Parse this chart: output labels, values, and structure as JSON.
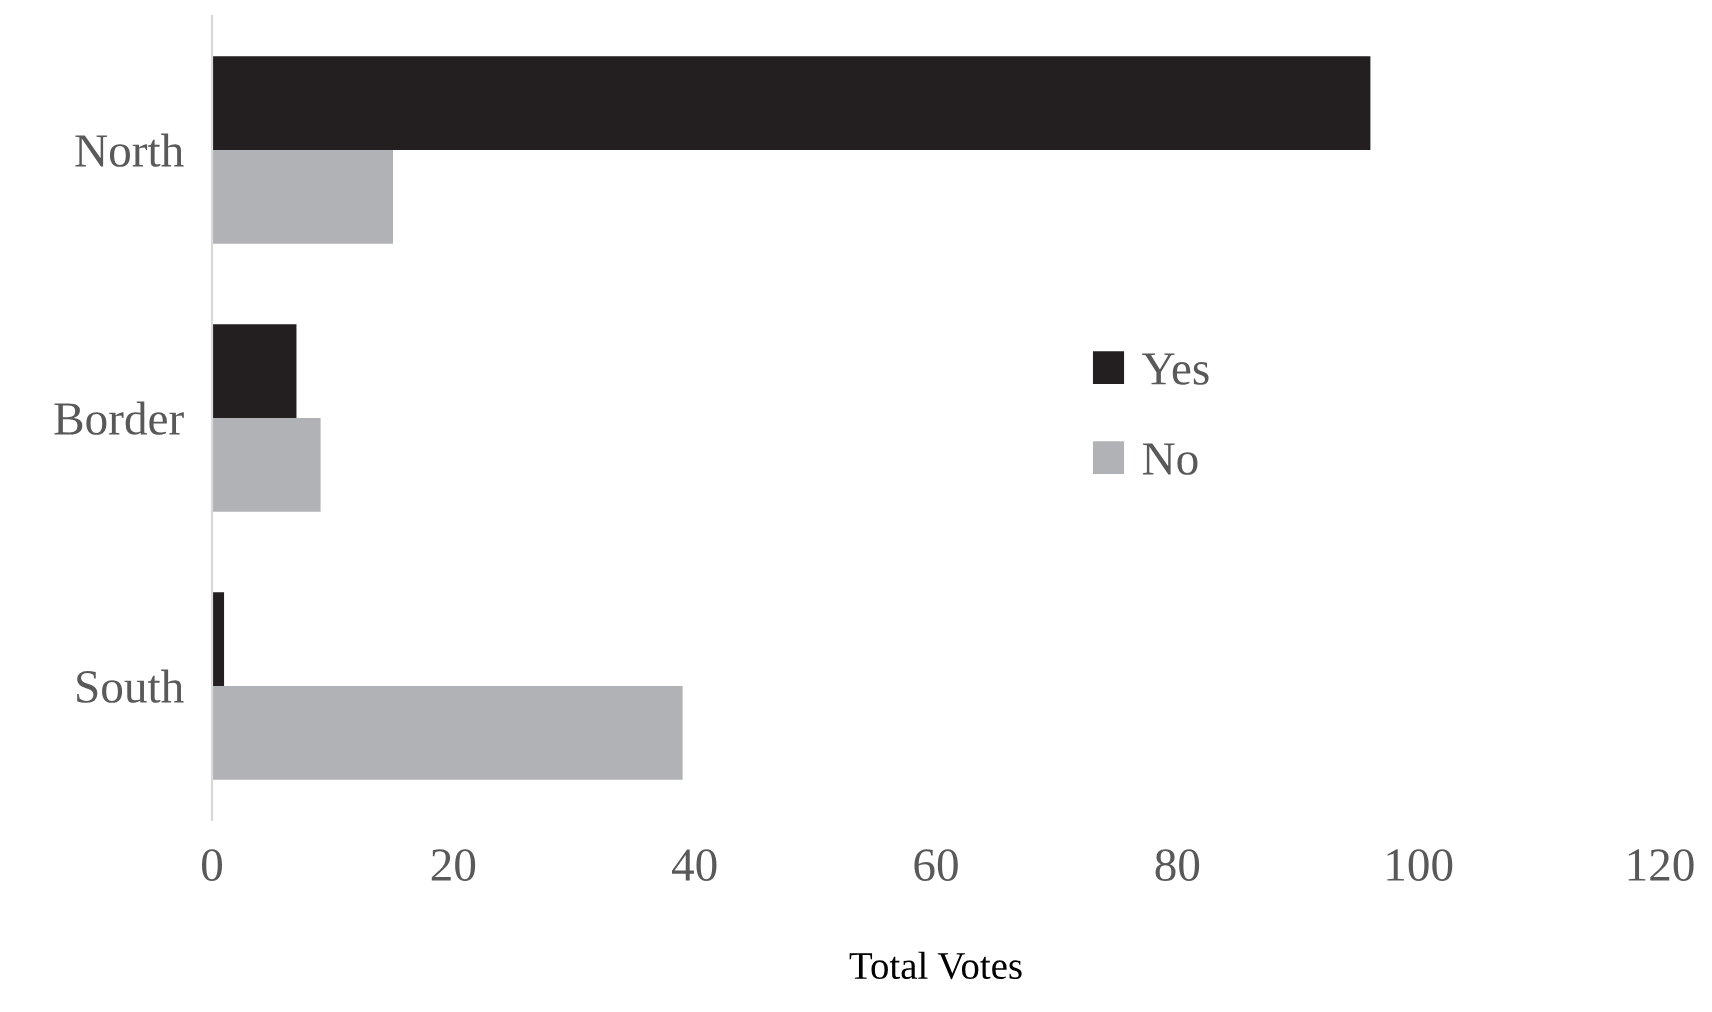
{
  "chart_data": {
    "type": "bar",
    "orientation": "horizontal",
    "xlabel": "Total Votes",
    "categories": [
      "North",
      "Border",
      "South"
    ],
    "series": [
      {
        "name": "Yes",
        "color": "#231f20",
        "values": [
          96,
          7,
          1
        ]
      },
      {
        "name": "No",
        "color": "#b1b2b6",
        "values": [
          15,
          9,
          39
        ]
      }
    ],
    "xlim": [
      0,
      120
    ],
    "xticks": [
      0,
      20,
      40,
      60,
      80,
      100,
      120
    ],
    "grid": false,
    "legend": "right"
  }
}
